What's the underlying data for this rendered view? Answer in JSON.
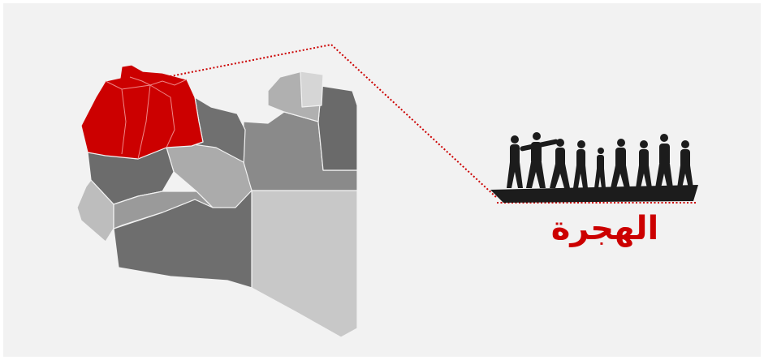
{
  "label": "الهجرة"
}
